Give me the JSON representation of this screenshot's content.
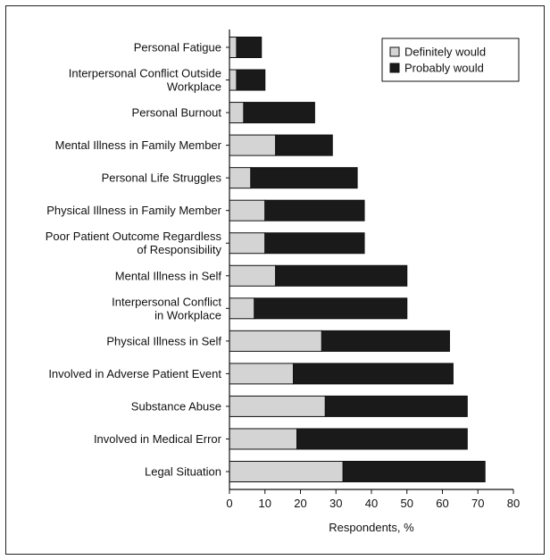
{
  "chart_data": {
    "type": "bar",
    "orientation": "horizontal",
    "stacked": true,
    "categories": [
      "Personal Fatigue",
      "Interpersonal Conflict Outside Workplace",
      "Personal Burnout",
      "Mental Illness in Family Member",
      "Personal Life Struggles",
      "Physical Illness in Family Member",
      "Poor Patient Outcome Regardless of Responsibility",
      "Mental Illness in Self",
      "Interpersonal Conflict in Workplace",
      "Physical Illness in Self",
      "Involved in Adverse Patient Event",
      "Substance Abuse",
      "Involved in Medical Error",
      "Legal Situation"
    ],
    "category_lines": [
      [
        "Personal Fatigue"
      ],
      [
        "Interpersonal Conflict Outside",
        "Workplace"
      ],
      [
        "Personal Burnout"
      ],
      [
        "Mental Illness in Family Member"
      ],
      [
        "Personal Life Struggles"
      ],
      [
        "Physical Illness in Family Member"
      ],
      [
        "Poor Patient Outcome Regardless",
        "of Responsibility"
      ],
      [
        "Mental Illness in Self"
      ],
      [
        "Interpersonal Conflict",
        "in Workplace"
      ],
      [
        "Physical Illness in Self"
      ],
      [
        "Involved in Adverse Patient Event"
      ],
      [
        "Substance Abuse"
      ],
      [
        "Involved in Medical Error"
      ],
      [
        "Legal Situation"
      ]
    ],
    "series": [
      {
        "name": "Definitely would",
        "color": "#d4d4d4",
        "values": [
          2,
          2,
          4,
          13,
          6,
          10,
          10,
          13,
          7,
          26,
          18,
          27,
          19,
          32
        ]
      },
      {
        "name": "Probably would",
        "color": "#1a1a1a",
        "values": [
          7,
          8,
          20,
          16,
          30,
          28,
          28,
          37,
          43,
          36,
          45,
          40,
          48,
          40
        ]
      }
    ],
    "xlabel": "Respondents, %",
    "ylabel": "",
    "xlim": [
      0,
      80
    ],
    "xticks": [
      0,
      10,
      20,
      30,
      40,
      50,
      60,
      70,
      80
    ],
    "grid": false,
    "legend_position": "top-right"
  }
}
